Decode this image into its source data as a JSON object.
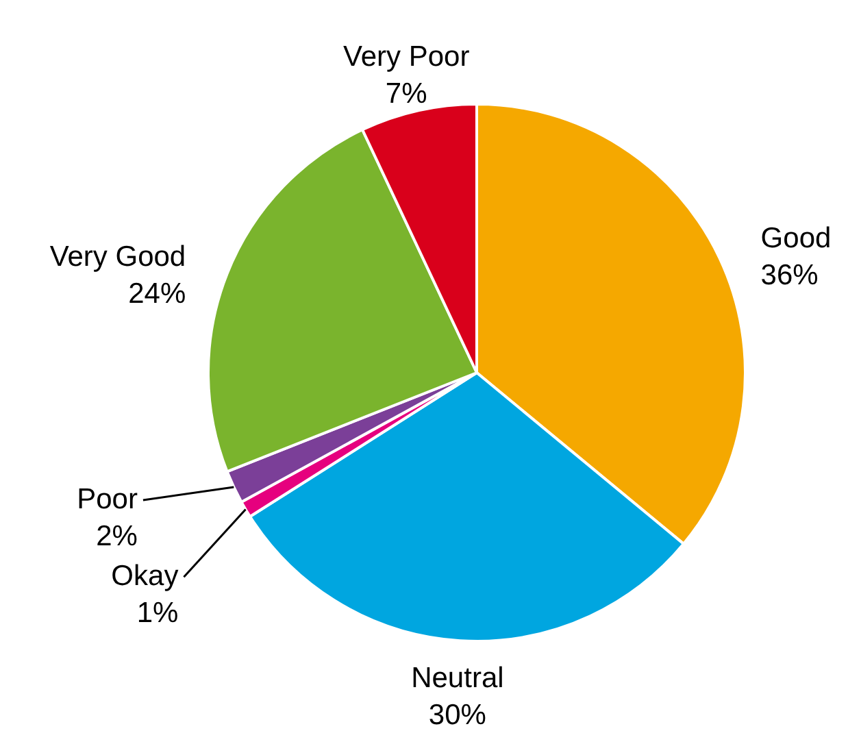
{
  "chart_data": {
    "type": "pie",
    "categories": [
      "Good",
      "Neutral",
      "Okay",
      "Poor",
      "Very Good",
      "Very Poor"
    ],
    "values": [
      36,
      30,
      1,
      2,
      24,
      7
    ],
    "value_labels": [
      "36%",
      "30%",
      "1%",
      "2%",
      "24%",
      "7%"
    ],
    "colors": [
      "#f5a800",
      "#00a6e0",
      "#e6007e",
      "#7b3f98",
      "#7ab42d",
      "#d9001b"
    ]
  }
}
